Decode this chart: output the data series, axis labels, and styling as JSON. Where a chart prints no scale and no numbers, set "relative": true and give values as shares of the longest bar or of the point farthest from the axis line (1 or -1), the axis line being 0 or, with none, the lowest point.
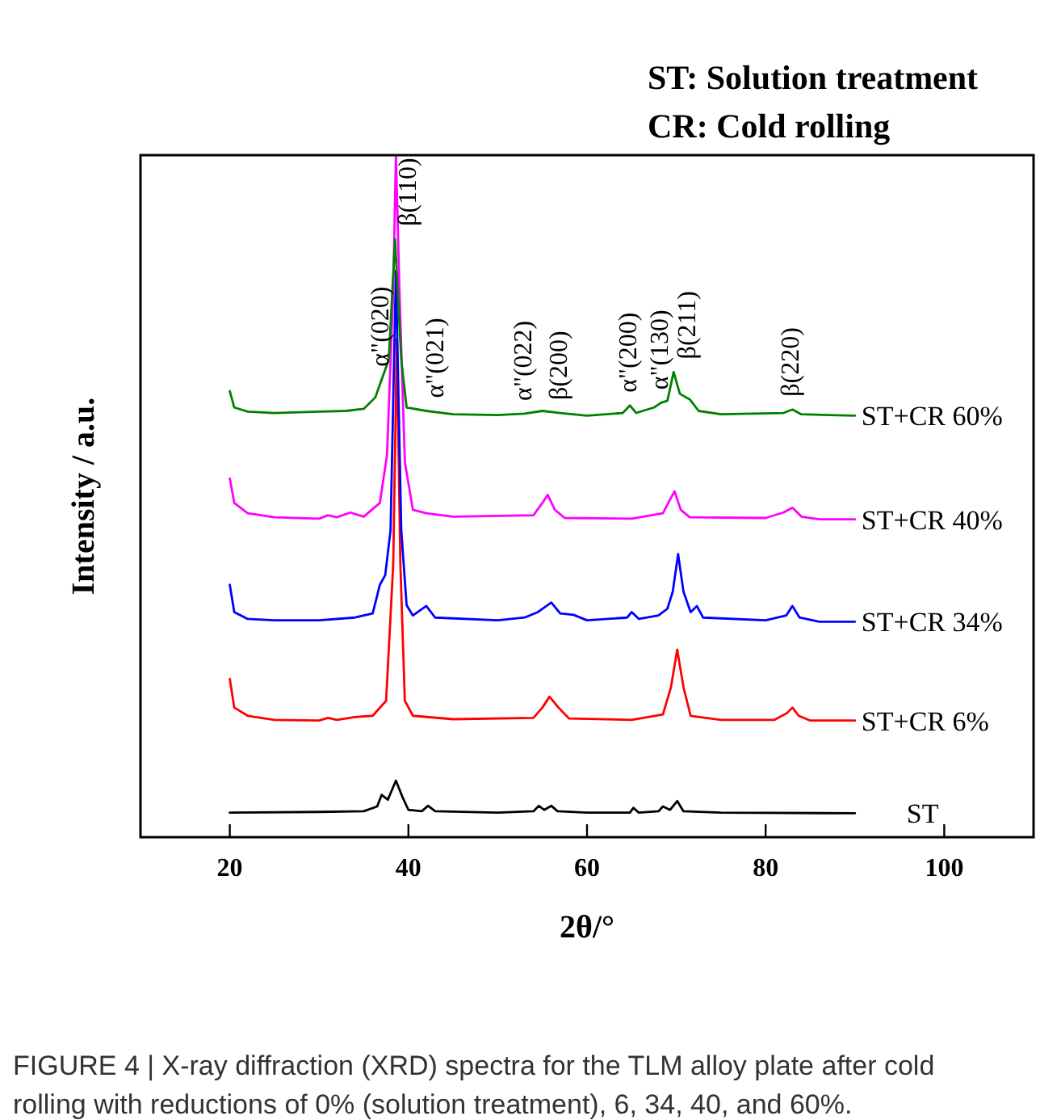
{
  "chart_data": {
    "type": "line",
    "relative": true,
    "xlabel": "2θ/°",
    "ylabel": "Intensity / a.u.",
    "xlim": [
      10,
      110
    ],
    "xticks": [
      20,
      40,
      60,
      80,
      100
    ],
    "grid": false,
    "legend": false,
    "marker": "none",
    "line_style": "solid",
    "annotations": [
      "ST: Solution treatment",
      "CR: Cold rolling",
      {
        "text": "α\"(020)",
        "x": 37,
        "y": 0.671
      },
      {
        "text": "β(110)",
        "x": 38.5,
        "y": 0.877
      },
      {
        "text": "α\"(021)",
        "x": 42,
        "y": 0.625
      },
      {
        "text": "α\"(022)",
        "x": 53,
        "y": 0.621
      },
      {
        "text": "β(200)",
        "x": 57,
        "y": 0.622
      },
      {
        "text": "α\"(200)",
        "x": 64.8,
        "y": 0.633
      },
      {
        "text": "α\"(130)",
        "x": 68.3,
        "y": 0.637
      },
      {
        "text": "β(211)",
        "x": 69.7,
        "y": 0.682
      },
      {
        "text": "β(220)",
        "x": 83,
        "y": 0.627
      },
      "FIGURE 4 | X-ray diffraction (XRD) spectra for the TLM alloy plate after cold rolling with reductions of 0% (solution treatment), 6, 34, 40, and 60%."
    ],
    "series": [
      {
        "name": "ST",
        "color": "#000000",
        "x": [
          20,
          30,
          35,
          36.5,
          37,
          37.7,
          38.6,
          39.3,
          40,
          41.5,
          42.2,
          43,
          50,
          54,
          54.6,
          55.2,
          56,
          56.7,
          60,
          64.8,
          65.2,
          65.8,
          68,
          68.5,
          69.3,
          70.1,
          70.8,
          75,
          90
        ],
        "values": [
          0.036,
          0.037,
          0.038,
          0.045,
          0.062,
          0.055,
          0.083,
          0.06,
          0.04,
          0.038,
          0.046,
          0.038,
          0.036,
          0.038,
          0.046,
          0.04,
          0.046,
          0.038,
          0.036,
          0.036,
          0.043,
          0.036,
          0.038,
          0.045,
          0.04,
          0.053,
          0.038,
          0.036,
          0.035
        ]
      },
      {
        "name": "ST+CR 6%",
        "color": "#ff0000",
        "x": [
          20,
          20.5,
          22,
          25,
          30,
          31,
          32,
          34,
          36,
          37.5,
          38.3,
          38.7,
          39.1,
          39.6,
          40.5,
          45,
          54,
          55,
          55.8,
          56.8,
          58,
          65,
          68.5,
          69.4,
          70.1,
          70.8,
          71.6,
          75,
          81,
          82.4,
          83,
          83.7,
          85,
          90
        ],
        "values": [
          0.232,
          0.19,
          0.178,
          0.172,
          0.171,
          0.175,
          0.172,
          0.176,
          0.178,
          0.2,
          0.4,
          0.73,
          0.4,
          0.2,
          0.178,
          0.173,
          0.175,
          0.19,
          0.206,
          0.19,
          0.174,
          0.172,
          0.18,
          0.22,
          0.275,
          0.22,
          0.178,
          0.172,
          0.172,
          0.182,
          0.19,
          0.178,
          0.171,
          0.171
        ]
      },
      {
        "name": "ST+CR 34%",
        "color": "#0000ff",
        "x": [
          20,
          20.5,
          22,
          25,
          30,
          34,
          36,
          36.8,
          37.4,
          38,
          38.6,
          39.2,
          39.8,
          40.5,
          42,
          43,
          50,
          53,
          54.5,
          56,
          57,
          58.5,
          60,
          64.5,
          65,
          65.8,
          68,
          69,
          69.6,
          70.2,
          70.8,
          71.6,
          72.3,
          73,
          80,
          82.3,
          83,
          83.8,
          86,
          90
        ],
        "values": [
          0.37,
          0.33,
          0.32,
          0.318,
          0.318,
          0.322,
          0.328,
          0.37,
          0.384,
          0.45,
          0.83,
          0.45,
          0.34,
          0.325,
          0.339,
          0.322,
          0.318,
          0.322,
          0.33,
          0.344,
          0.328,
          0.326,
          0.318,
          0.322,
          0.33,
          0.32,
          0.325,
          0.335,
          0.36,
          0.415,
          0.36,
          0.33,
          0.339,
          0.322,
          0.318,
          0.325,
          0.339,
          0.322,
          0.316,
          0.316
        ]
      },
      {
        "name": "ST+CR 40%",
        "color": "#ff00ff",
        "x": [
          20,
          20.5,
          22,
          25,
          30,
          31,
          32,
          33.5,
          35,
          36.8,
          37.6,
          38.3,
          38.6,
          39,
          39.6,
          40.5,
          42,
          45,
          54,
          55,
          55.6,
          56.4,
          57.5,
          65,
          68.5,
          69.3,
          69.8,
          70.5,
          71.5,
          80,
          82,
          83,
          84,
          86,
          90
        ],
        "values": [
          0.526,
          0.49,
          0.475,
          0.469,
          0.467,
          0.472,
          0.469,
          0.476,
          0.47,
          0.49,
          0.56,
          0.8,
          1,
          0.8,
          0.55,
          0.48,
          0.475,
          0.47,
          0.472,
          0.49,
          0.502,
          0.48,
          0.468,
          0.467,
          0.475,
          0.495,
          0.507,
          0.48,
          0.469,
          0.468,
          0.476,
          0.483,
          0.47,
          0.466,
          0.466
        ]
      },
      {
        "name": "ST+CR 60%",
        "color": "#008000",
        "x": [
          20,
          20.5,
          22,
          25,
          30,
          33,
          35,
          36.3,
          37,
          37.8,
          38.5,
          39.2,
          39.8,
          42,
          45,
          50,
          53,
          55,
          57,
          60,
          64,
          64.8,
          65.5,
          67.5,
          68.3,
          69,
          69.7,
          70.4,
          71.5,
          72.5,
          75,
          82,
          83,
          84,
          90
        ],
        "values": [
          0.654,
          0.63,
          0.624,
          0.622,
          0.624,
          0.625,
          0.628,
          0.645,
          0.671,
          0.7,
          0.877,
          0.7,
          0.63,
          0.625,
          0.62,
          0.619,
          0.621,
          0.625,
          0.622,
          0.618,
          0.622,
          0.633,
          0.622,
          0.63,
          0.637,
          0.64,
          0.682,
          0.65,
          0.642,
          0.625,
          0.62,
          0.622,
          0.627,
          0.62,
          0.618
        ]
      }
    ]
  }
}
